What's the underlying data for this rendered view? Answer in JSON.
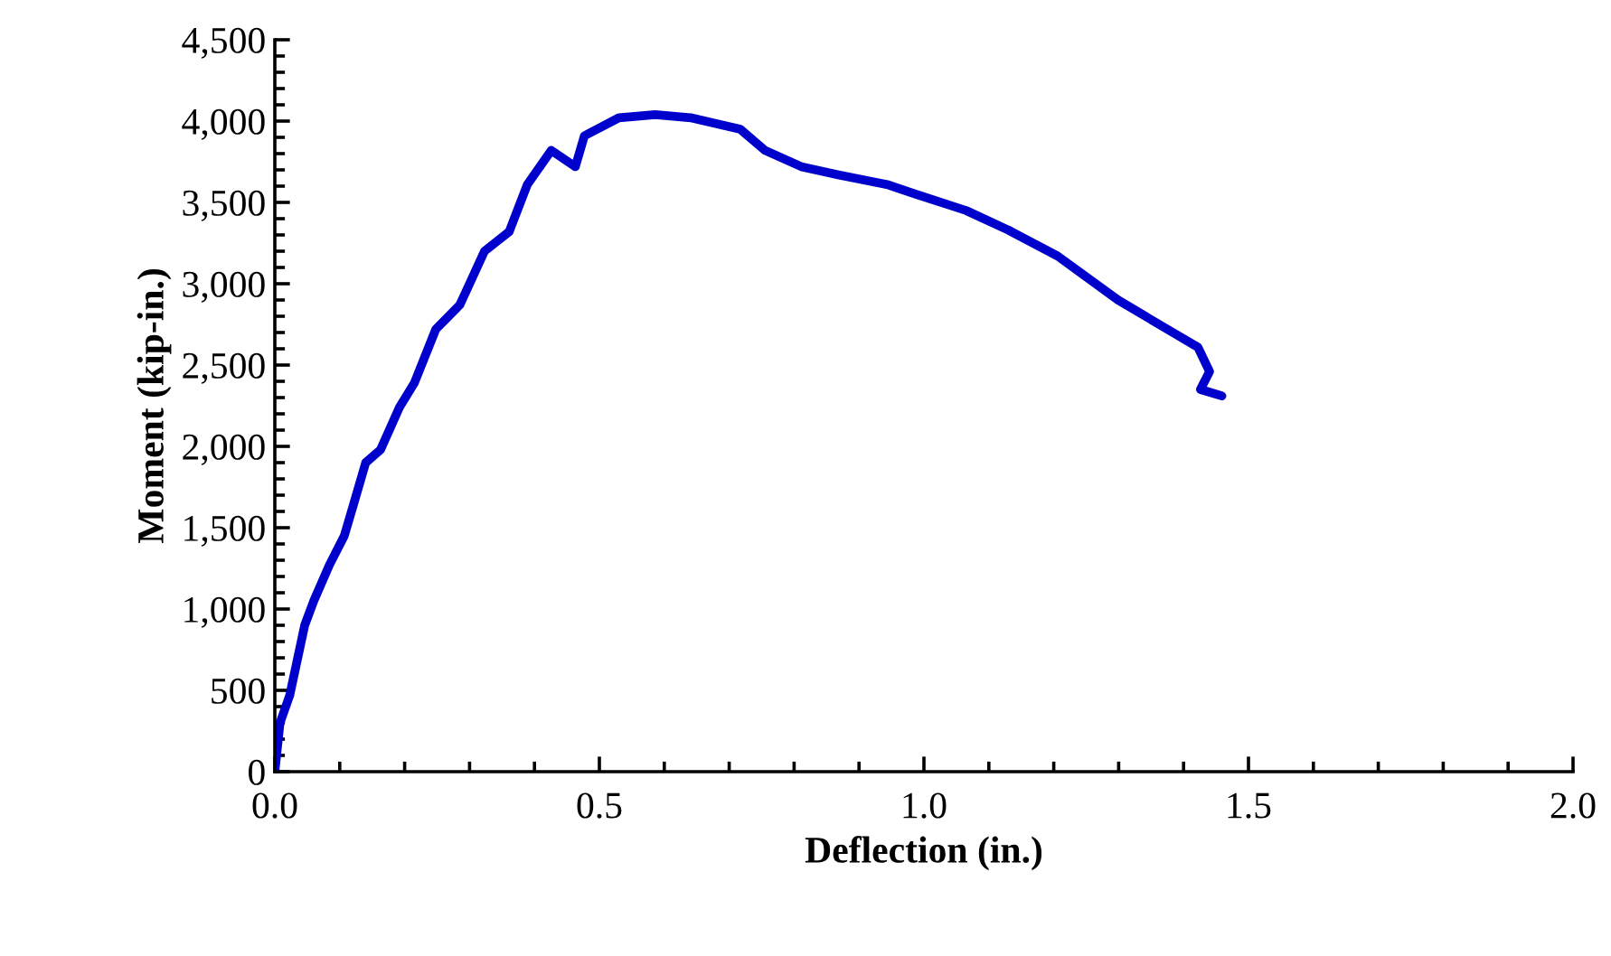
{
  "chart_data": {
    "type": "line",
    "xlabel": "Deflection (in.)",
    "ylabel": "Moment (kip-in.)",
    "x": [
      0,
      0.008,
      0.023,
      0.046,
      0.06,
      0.084,
      0.107,
      0.121,
      0.14,
      0.163,
      0.192,
      0.215,
      0.248,
      0.285,
      0.323,
      0.361,
      0.389,
      0.426,
      0.463,
      0.477,
      0.53,
      0.586,
      0.642,
      0.717,
      0.755,
      0.811,
      0.868,
      0.943,
      0.98,
      1.065,
      1.13,
      1.206,
      1.299,
      1.375,
      1.422,
      1.44,
      1.426,
      1.459
    ],
    "series": [
      {
        "color": "#0000cc",
        "values": [
          0,
          300,
          470,
          900,
          1050,
          1270,
          1450,
          1640,
          1900,
          1980,
          2240,
          2390,
          2720,
          2870,
          3200,
          3320,
          3610,
          3820,
          3720,
          3910,
          4020,
          4040,
          4020,
          3950,
          3820,
          3720,
          3670,
          3610,
          3560,
          3450,
          3330,
          3170,
          2900,
          2720,
          2610,
          2460,
          2350,
          2310
        ]
      }
    ],
    "xlim": [
      0,
      2.0
    ],
    "xticks": [
      {
        "value": 0,
        "label": "0.0"
      },
      {
        "value": 0.5,
        "label": "0.5"
      },
      {
        "value": 1.0,
        "label": "1.0"
      },
      {
        "value": 1.5,
        "label": "1.5"
      },
      {
        "value": 2.0,
        "label": "2.0"
      }
    ],
    "ylim": [
      0,
      4500
    ],
    "yticks": [
      0,
      500,
      {
        "value": 1000,
        "label": "1,000"
      },
      {
        "value": 1500,
        "label": "1,500"
      },
      {
        "value": 2000,
        "label": "2,000"
      },
      {
        "value": 2500,
        "label": "2,500"
      },
      {
        "value": 3000,
        "label": "3,000"
      },
      {
        "value": 3500,
        "label": "3,500"
      },
      {
        "value": 4000,
        "label": "4,000"
      },
      {
        "value": 4500,
        "label": "4,500"
      }
    ],
    "grid": false,
    "marker": "none",
    "line_style": "solid"
  }
}
